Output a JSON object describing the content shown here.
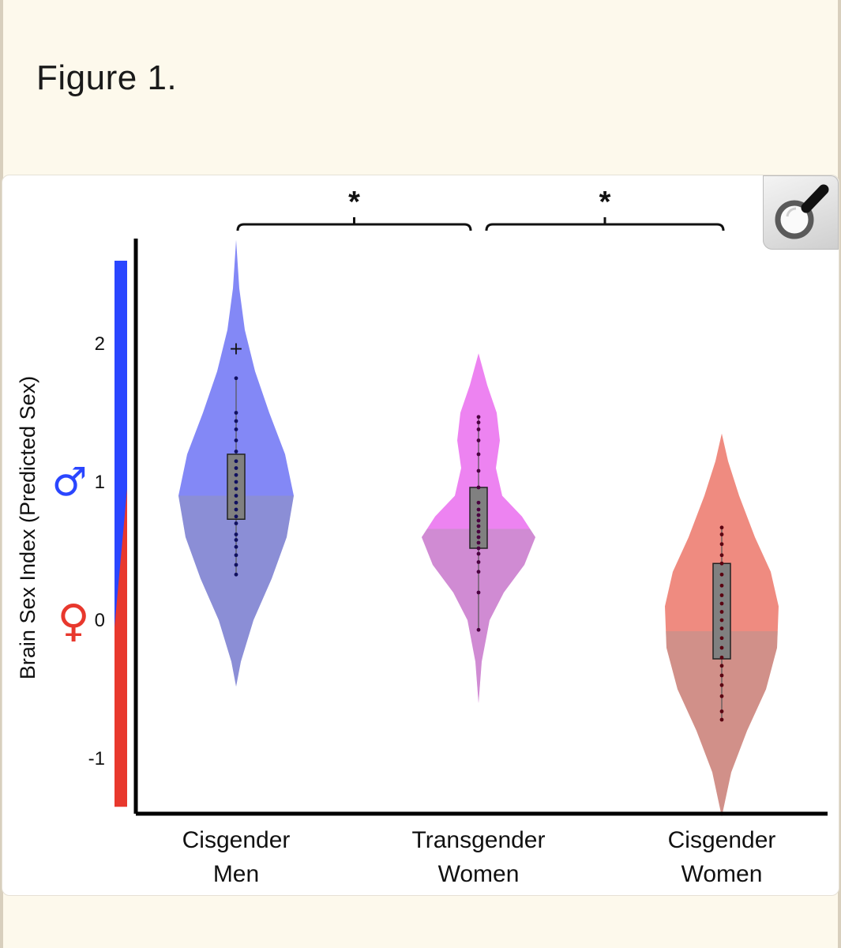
{
  "page": {
    "figure_title": "Figure 1.",
    "zoom_icon": "magnifier-icon"
  },
  "chart_data": {
    "type": "violin",
    "ylabel": "Brain Sex Index (Predicted Sex)",
    "ylim": [
      -1.35,
      2.8
    ],
    "yticks": [
      "-1",
      "0",
      "1",
      "2"
    ],
    "male_symbol": "♂",
    "female_symbol": "♀",
    "colors": {
      "male": "#2a46ff",
      "female": "#e8382d",
      "cis_men": "#7c82f6",
      "trans_women": "#ec7cf0",
      "cis_women": "#ee8579",
      "box": "#808080"
    },
    "groups": [
      {
        "name": "Cisgender Men",
        "name_lines": [
          "Cisgender",
          "Men"
        ],
        "violin_range": [
          -0.48,
          2.75
        ],
        "box": {
          "q1": 0.73,
          "median": 0.95,
          "q3": 1.2,
          "whisker_low": 0.33,
          "whisker_high": 1.75
        },
        "outliers": [
          1.97
        ],
        "points": [
          0.33,
          0.4,
          0.47,
          0.53,
          0.58,
          0.62,
          0.7,
          0.75,
          0.8,
          0.85,
          0.9,
          0.95,
          1.0,
          1.05,
          1.1,
          1.15,
          1.22,
          1.3,
          1.38,
          1.44,
          1.5,
          1.75
        ]
      },
      {
        "name": "Transgender Women",
        "name_lines": [
          "Transgender",
          "Women"
        ],
        "violin_range": [
          -0.6,
          1.93
        ],
        "box": {
          "q1": 0.52,
          "median": 0.75,
          "q3": 0.96,
          "whisker_low": -0.07,
          "whisker_high": 1.47
        },
        "outliers": [],
        "points": [
          -0.07,
          0.2,
          0.35,
          0.42,
          0.48,
          0.52,
          0.56,
          0.6,
          0.64,
          0.68,
          0.72,
          0.76,
          0.8,
          0.85,
          0.96,
          1.08,
          1.2,
          1.3,
          1.38,
          1.43,
          1.47
        ]
      },
      {
        "name": "Cisgender Women",
        "name_lines": [
          "Cisgender",
          "Women"
        ],
        "violin_range": [
          -1.42,
          1.35
        ],
        "box": {
          "q1": -0.28,
          "median": 0.08,
          "q3": 0.41,
          "whisker_low": -0.72,
          "whisker_high": 0.67
        },
        "outliers": [],
        "points": [
          -0.72,
          -0.66,
          -0.55,
          -0.47,
          -0.4,
          -0.33,
          -0.27,
          -0.2,
          -0.13,
          -0.06,
          0.0,
          0.06,
          0.12,
          0.18,
          0.25,
          0.33,
          0.41,
          0.47,
          0.55,
          0.62,
          0.67
        ]
      }
    ],
    "significance": [
      {
        "from": 0,
        "to": 1,
        "label": "*"
      },
      {
        "from": 1,
        "to": 2,
        "label": "*"
      }
    ]
  }
}
